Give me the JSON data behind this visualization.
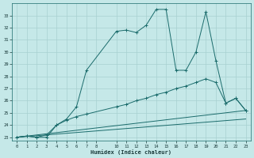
{
  "xlabel": "Humidex (Indice chaleur)",
  "bg_color": "#c5e8e8",
  "line_color": "#1a6b6b",
  "grid_color": "#a8d0d0",
  "xlim": [
    -0.5,
    23.5
  ],
  "ylim": [
    22.7,
    34.0
  ],
  "yticks": [
    23,
    24,
    25,
    26,
    27,
    28,
    29,
    30,
    31,
    32,
    33
  ],
  "xticks": [
    0,
    1,
    2,
    3,
    4,
    5,
    6,
    7,
    8,
    10,
    11,
    12,
    13,
    14,
    15,
    16,
    17,
    18,
    19,
    20,
    21,
    22,
    23
  ],
  "xtick_labels": [
    "0",
    "1",
    "2",
    "3",
    "4",
    "5",
    "6",
    "7",
    "8",
    "10",
    "11",
    "12",
    "13",
    "14",
    "15",
    "16",
    "17",
    "18",
    "19",
    "20",
    "21",
    "22",
    "23"
  ],
  "series_upper": {
    "x": [
      0,
      1,
      2,
      3,
      4,
      5,
      6,
      7,
      10,
      11,
      12,
      13,
      14,
      15,
      16,
      17,
      18,
      19,
      20,
      21,
      22,
      23
    ],
    "y": [
      23,
      23.1,
      23.0,
      23.0,
      24.0,
      24.5,
      25.5,
      28.5,
      31.7,
      31.8,
      31.6,
      32.2,
      33.5,
      33.5,
      28.5,
      28.5,
      30.0,
      33.3,
      29.3,
      25.8,
      26.2,
      25.2
    ]
  },
  "series_mid": {
    "x": [
      0,
      1,
      2,
      3,
      4,
      5,
      6,
      7,
      10,
      11,
      12,
      13,
      14,
      15,
      16,
      17,
      18,
      19,
      20,
      21,
      22,
      23
    ],
    "y": [
      23,
      23.1,
      23.0,
      23.2,
      24.0,
      24.4,
      24.7,
      24.9,
      25.5,
      25.7,
      26.0,
      26.2,
      26.5,
      26.7,
      27.0,
      27.2,
      27.5,
      27.8,
      27.5,
      25.8,
      26.2,
      25.2
    ]
  },
  "series_line1": {
    "x": [
      0,
      23
    ],
    "y": [
      23,
      25.2
    ]
  },
  "series_line2": {
    "x": [
      0,
      23
    ],
    "y": [
      23,
      24.5
    ]
  }
}
